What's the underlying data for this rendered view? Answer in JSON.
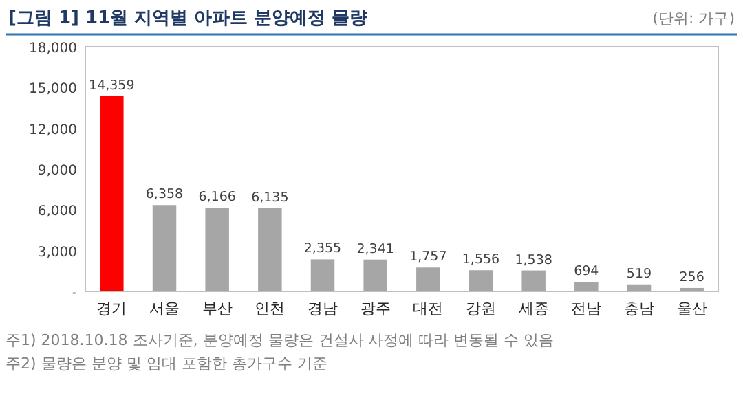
{
  "chart_data": {
    "type": "bar",
    "title": "[그림 1] 11월 지역별 아파트 분양예정 물량",
    "subtitle": "(단위: 가구)",
    "categories": [
      "경기",
      "서울",
      "부산",
      "인천",
      "경남",
      "광주",
      "대전",
      "강원",
      "세종",
      "전남",
      "충남",
      "울산"
    ],
    "values": [
      14359,
      6358,
      6166,
      6135,
      2355,
      2341,
      1757,
      1556,
      1538,
      694,
      519,
      256
    ],
    "colors": [
      "#ff0000",
      "#a6a6a6",
      "#a6a6a6",
      "#a6a6a6",
      "#a6a6a6",
      "#a6a6a6",
      "#a6a6a6",
      "#a6a6a6",
      "#a6a6a6",
      "#a6a6a6",
      "#a6a6a6",
      "#a6a6a6"
    ],
    "ylim": [
      0,
      18000
    ],
    "yticks": [
      {
        "value": 0,
        "label": "-"
      },
      {
        "value": 3000,
        "label": "3,000"
      },
      {
        "value": 6000,
        "label": "6,000"
      },
      {
        "value": 9000,
        "label": "9,000"
      },
      {
        "value": 12000,
        "label": "12,000"
      },
      {
        "value": 15000,
        "label": "15,000"
      },
      {
        "value": 18000,
        "label": "18,000"
      }
    ],
    "value_labels": [
      "14,359",
      "6,358",
      "6,166",
      "6,135",
      "2,355",
      "2,341",
      "1,757",
      "1,556",
      "1,538",
      "694",
      "519",
      "256"
    ],
    "annotations": [
      "주1) 2018.10.18 조사기준, 분양예정 물량은 건설사 사정에 따라 변동될 수 있음",
      "주2) 물량은 분양 및 임대 포함한 총가구수 기준"
    ]
  }
}
